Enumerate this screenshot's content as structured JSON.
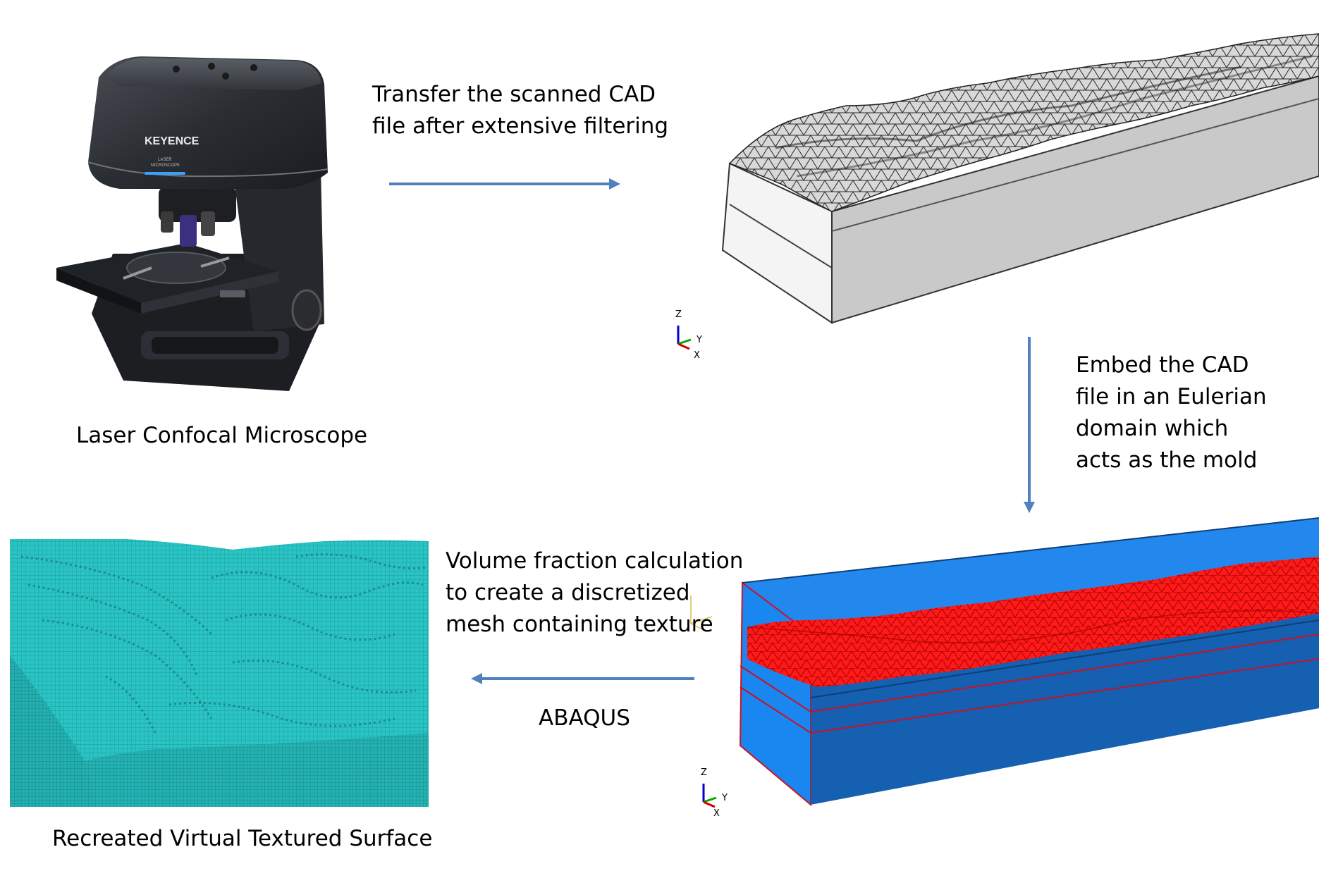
{
  "microscope": {
    "brand": "KEYENCE",
    "badge_line1": "LASER",
    "badge_line2": "MICROSCOPE",
    "caption": "Laser Confocal Microscope"
  },
  "step1": {
    "text": "Transfer the scanned CAD\nfile after extensive filtering"
  },
  "step2": {
    "text": "Embed the CAD\nfile in an Eulerian\ndomain which\nacts as the mold"
  },
  "step3": {
    "text": "Volume fraction calculation\nto create a discretized\nmesh containing texture",
    "tool": "ABAQUS"
  },
  "result": {
    "caption": "Recreated Virtual Textured Surface"
  },
  "triad": {
    "z": "Z",
    "y": "Y",
    "x": "X"
  },
  "colors": {
    "arrow": "#4f81bd",
    "mesh_gray": "#cfcfcf",
    "euler_blue": "#1f7fe0",
    "euler_dark": "#1560b0",
    "texture_red": "#ff1010",
    "teal": "#27bdbd"
  }
}
